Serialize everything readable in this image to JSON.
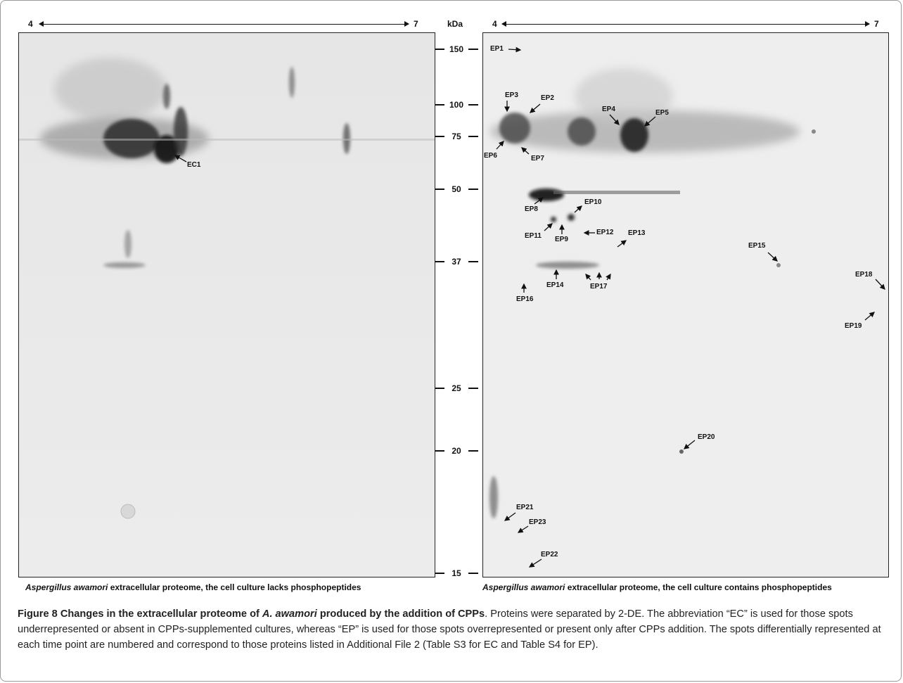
{
  "ph_axis_left": {
    "start": "4",
    "end": "7"
  },
  "ph_axis_right": {
    "start": "4",
    "end": "7"
  },
  "kda_label": "kDa",
  "markers": [
    "150",
    "100",
    "75",
    "50",
    "37",
    "25",
    "20",
    "15"
  ],
  "left_spots": [
    "EC1"
  ],
  "right_spots": [
    "EP1",
    "EP2",
    "EP3",
    "EP4",
    "EP5",
    "EP6",
    "EP7",
    "EP8",
    "EP9",
    "EP10",
    "EP11",
    "EP12",
    "EP13",
    "EP14",
    "EP15",
    "EP16",
    "EP17",
    "EP18",
    "EP19",
    "EP20",
    "EP21",
    "EP22",
    "EP23"
  ],
  "panel_left": {
    "species": "Aspergillus awamori",
    "caption": " extracellular proteome, the cell culture lacks phosphopeptides"
  },
  "panel_right": {
    "species": "Aspergillus awamori",
    "caption": " extracellular proteome, the cell culture contains phosphopeptides"
  },
  "figure": {
    "title_prefix": "Figure 8 Changes in the extracellular proteome of ",
    "title_species": "A. awamori",
    "title_suffix": " produced by the addition of CPPs",
    "body": ". Proteins were separated by 2-DE. The abbreviation “EC” is used for those spots underrepresented or absent in CPPs-supplemented cultures, whereas “EP” is used for those spots overrepresented or present only after CPPs addition. The spots differentially represented at each time point are numbered and correspond to those proteins listed in Additional File 2 (Table S3 for EC and Table S4 for EP)."
  },
  "colors": {
    "gel_bg": "#e9e9e9",
    "spot": "#1a1a1a",
    "text": "#111111"
  }
}
